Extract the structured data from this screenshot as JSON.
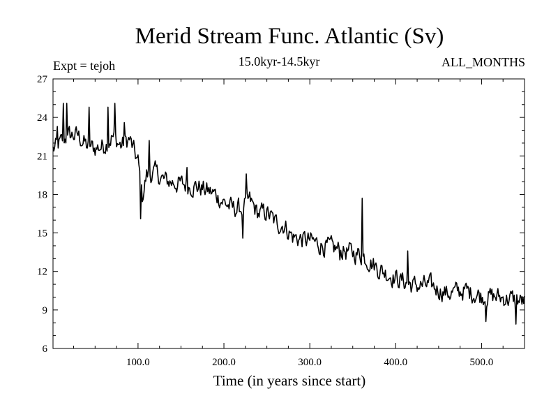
{
  "chart_data": {
    "type": "line",
    "title": "Merid Stream Func. Atlantic (Sv)",
    "subtitle": "15.0kyr-14.5kyr",
    "experiment_label": "Expt = tejoh",
    "period_label": "ALL_MONTHS",
    "xlabel": "Time (in years since start)",
    "ylabel": "",
    "xlim": [
      1,
      550
    ],
    "ylim": [
      6,
      27
    ],
    "xticks_major": [
      100,
      200,
      300,
      400,
      500
    ],
    "xtick_labels": [
      "100.0",
      "200.0",
      "300.0",
      "400.0",
      "500.0"
    ],
    "yticks": [
      6,
      9,
      12,
      15,
      18,
      21,
      24,
      27
    ],
    "ytick_labels": [
      "6",
      "9",
      "12",
      "15",
      "18",
      "21",
      "24",
      "27"
    ],
    "anchors": [
      [
        1,
        21.5
      ],
      [
        10,
        22.0
      ],
      [
        20,
        22.6
      ],
      [
        30,
        22.6
      ],
      [
        40,
        21.8
      ],
      [
        50,
        21.6
      ],
      [
        60,
        21.8
      ],
      [
        70,
        22.5
      ],
      [
        80,
        21.8
      ],
      [
        90,
        22.3
      ],
      [
        100,
        20.5
      ],
      [
        105,
        17.8
      ],
      [
        110,
        19.5
      ],
      [
        120,
        19.7
      ],
      [
        130,
        19.1
      ],
      [
        150,
        18.8
      ],
      [
        170,
        18.6
      ],
      [
        190,
        18.0
      ],
      [
        200,
        17.4
      ],
      [
        210,
        16.9
      ],
      [
        220,
        16.9
      ],
      [
        230,
        17.5
      ],
      [
        240,
        16.5
      ],
      [
        250,
        16.6
      ],
      [
        260,
        15.8
      ],
      [
        270,
        15.6
      ],
      [
        280,
        14.7
      ],
      [
        290,
        14.5
      ],
      [
        300,
        14.4
      ],
      [
        320,
        13.9
      ],
      [
        340,
        13.6
      ],
      [
        360,
        13.3
      ],
      [
        370,
        12.8
      ],
      [
        380,
        12.2
      ],
      [
        400,
        11.5
      ],
      [
        420,
        10.9
      ],
      [
        440,
        10.9
      ],
      [
        460,
        10.3
      ],
      [
        480,
        10.5
      ],
      [
        500,
        10.1
      ],
      [
        520,
        10.0
      ],
      [
        540,
        9.8
      ],
      [
        550,
        9.6
      ]
    ],
    "spikes": [
      [
        6,
        23.3
      ],
      [
        13,
        25.1
      ],
      [
        17,
        25.1
      ],
      [
        43,
        24.8
      ],
      [
        65,
        24.8
      ],
      [
        73,
        25.1
      ],
      [
        84,
        23.6
      ],
      [
        103,
        16.1
      ],
      [
        113,
        22.2
      ],
      [
        157,
        20.1
      ],
      [
        222,
        14.6
      ],
      [
        226,
        19.6
      ],
      [
        335,
        12.9
      ],
      [
        361,
        17.7
      ],
      [
        414,
        13.6
      ],
      [
        505,
        8.1
      ],
      [
        540,
        7.9
      ]
    ],
    "noise_amplitude": 0.75,
    "n_points": 550
  }
}
